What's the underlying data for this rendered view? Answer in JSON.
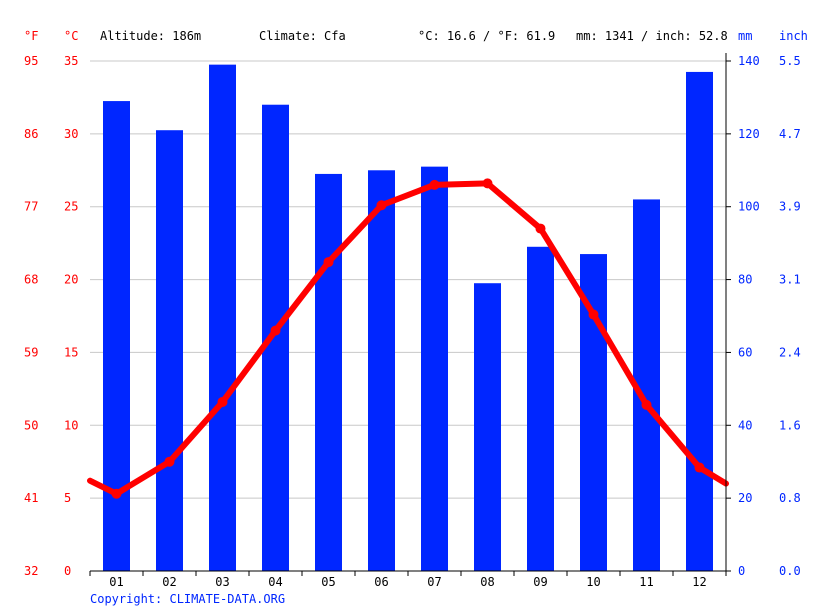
{
  "header": {
    "altitude": "Altitude: 186m",
    "climate": "Climate: Cfa",
    "temp_avg": "°C: 16.6 / °F: 61.9",
    "precip_total": "mm: 1341 / inch: 52.8"
  },
  "axes": {
    "unit_f": "°F",
    "unit_c": "°C",
    "unit_mm": "mm",
    "unit_inch": "inch",
    "f_ticks": [
      "95",
      "86",
      "77",
      "68",
      "59",
      "50",
      "41",
      "32"
    ],
    "c_ticks": [
      "35",
      "30",
      "25",
      "20",
      "15",
      "10",
      "5",
      "0"
    ],
    "mm_ticks": [
      "140",
      "120",
      "100",
      "80",
      "60",
      "40",
      "20",
      "0"
    ],
    "inch_ticks": [
      "5.5",
      "4.7",
      "3.9",
      "3.1",
      "2.4",
      "1.6",
      "0.8",
      "0.0"
    ]
  },
  "footer": {
    "copyright": "Copyright: CLIMATE-DATA.ORG"
  },
  "colors": {
    "precip_bar": "#0026ff",
    "temp_line": "#ff0000",
    "temp_axis": "#ff0000",
    "precip_axis": "#0026ff",
    "grid": "#c8c8c8",
    "text": "#000000",
    "copyright": "#0026ff"
  },
  "chart_data": {
    "type": "bar+line",
    "categories": [
      "01",
      "02",
      "03",
      "04",
      "05",
      "06",
      "07",
      "08",
      "09",
      "10",
      "11",
      "12"
    ],
    "series": [
      {
        "name": "Precipitation (mm)",
        "type": "bar",
        "axis": "right",
        "values": [
          129,
          121,
          139,
          128,
          109,
          110,
          111,
          79,
          89,
          87,
          102,
          137
        ]
      },
      {
        "name": "Temperature (°C)",
        "type": "line",
        "axis": "left",
        "values": [
          5.3,
          7.5,
          11.6,
          16.5,
          21.2,
          25.1,
          26.5,
          26.6,
          23.5,
          17.6,
          11.4,
          7.1
        ],
        "edge_start": 6.2,
        "edge_end": 6.0
      }
    ],
    "left_axis": {
      "label": "°C",
      "range": [
        0,
        35
      ]
    },
    "right_axis": {
      "label": "mm",
      "range": [
        0,
        140
      ]
    },
    "grid": true
  }
}
